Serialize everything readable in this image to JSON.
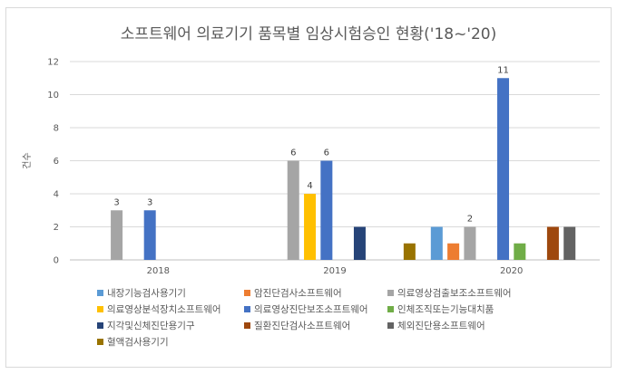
{
  "chart_data": {
    "type": "bar",
    "title": "소프트웨어 의료기기 품목별 임상시험승인 현황('18~'20)",
    "ylabel": "건수",
    "xlabel": "",
    "ylim": [
      0,
      12
    ],
    "yticks": [
      0,
      2,
      4,
      6,
      8,
      10,
      12
    ],
    "categories": [
      "2018",
      "2019",
      "2020"
    ],
    "grid": true,
    "legend_position": "bottom",
    "series": [
      {
        "name": "내장기능검사용기기",
        "color": "#5B9BD5",
        "values": [
          null,
          null,
          2
        ]
      },
      {
        "name": "암진단검사소프트웨어",
        "color": "#ED7D31",
        "values": [
          null,
          null,
          1
        ]
      },
      {
        "name": "의료영상검출보조소프트웨어",
        "color": "#A5A5A5",
        "values": [
          3,
          6,
          2
        ]
      },
      {
        "name": "의료영상분석장치소프트웨어",
        "color": "#FFC000",
        "values": [
          null,
          4,
          null
        ]
      },
      {
        "name": "의료영상진단보조소프트웨어",
        "color": "#4472C4",
        "values": [
          3,
          6,
          11
        ]
      },
      {
        "name": "인체조직또는기능대치품",
        "color": "#70AD47",
        "values": [
          null,
          null,
          1
        ]
      },
      {
        "name": "지각및신체진단용기구",
        "color": "#264478",
        "values": [
          null,
          2,
          null
        ]
      },
      {
        "name": "질환진단검사소프트웨어",
        "color": "#9E480E",
        "values": [
          null,
          null,
          2
        ]
      },
      {
        "name": "체외진단용소프트웨어",
        "color": "#636363",
        "values": [
          null,
          null,
          2
        ]
      },
      {
        "name": "혈액검사용기기",
        "color": "#997300",
        "values": [
          null,
          1,
          null
        ]
      }
    ],
    "data_labels": [
      {
        "series": 2,
        "category": 0,
        "text": "3"
      },
      {
        "series": 4,
        "category": 0,
        "text": "3"
      },
      {
        "series": 2,
        "category": 1,
        "text": "6"
      },
      {
        "series": 3,
        "category": 1,
        "text": "4"
      },
      {
        "series": 4,
        "category": 1,
        "text": "6"
      },
      {
        "series": 2,
        "category": 2,
        "text": "2"
      },
      {
        "series": 4,
        "category": 2,
        "text": "11"
      }
    ]
  }
}
